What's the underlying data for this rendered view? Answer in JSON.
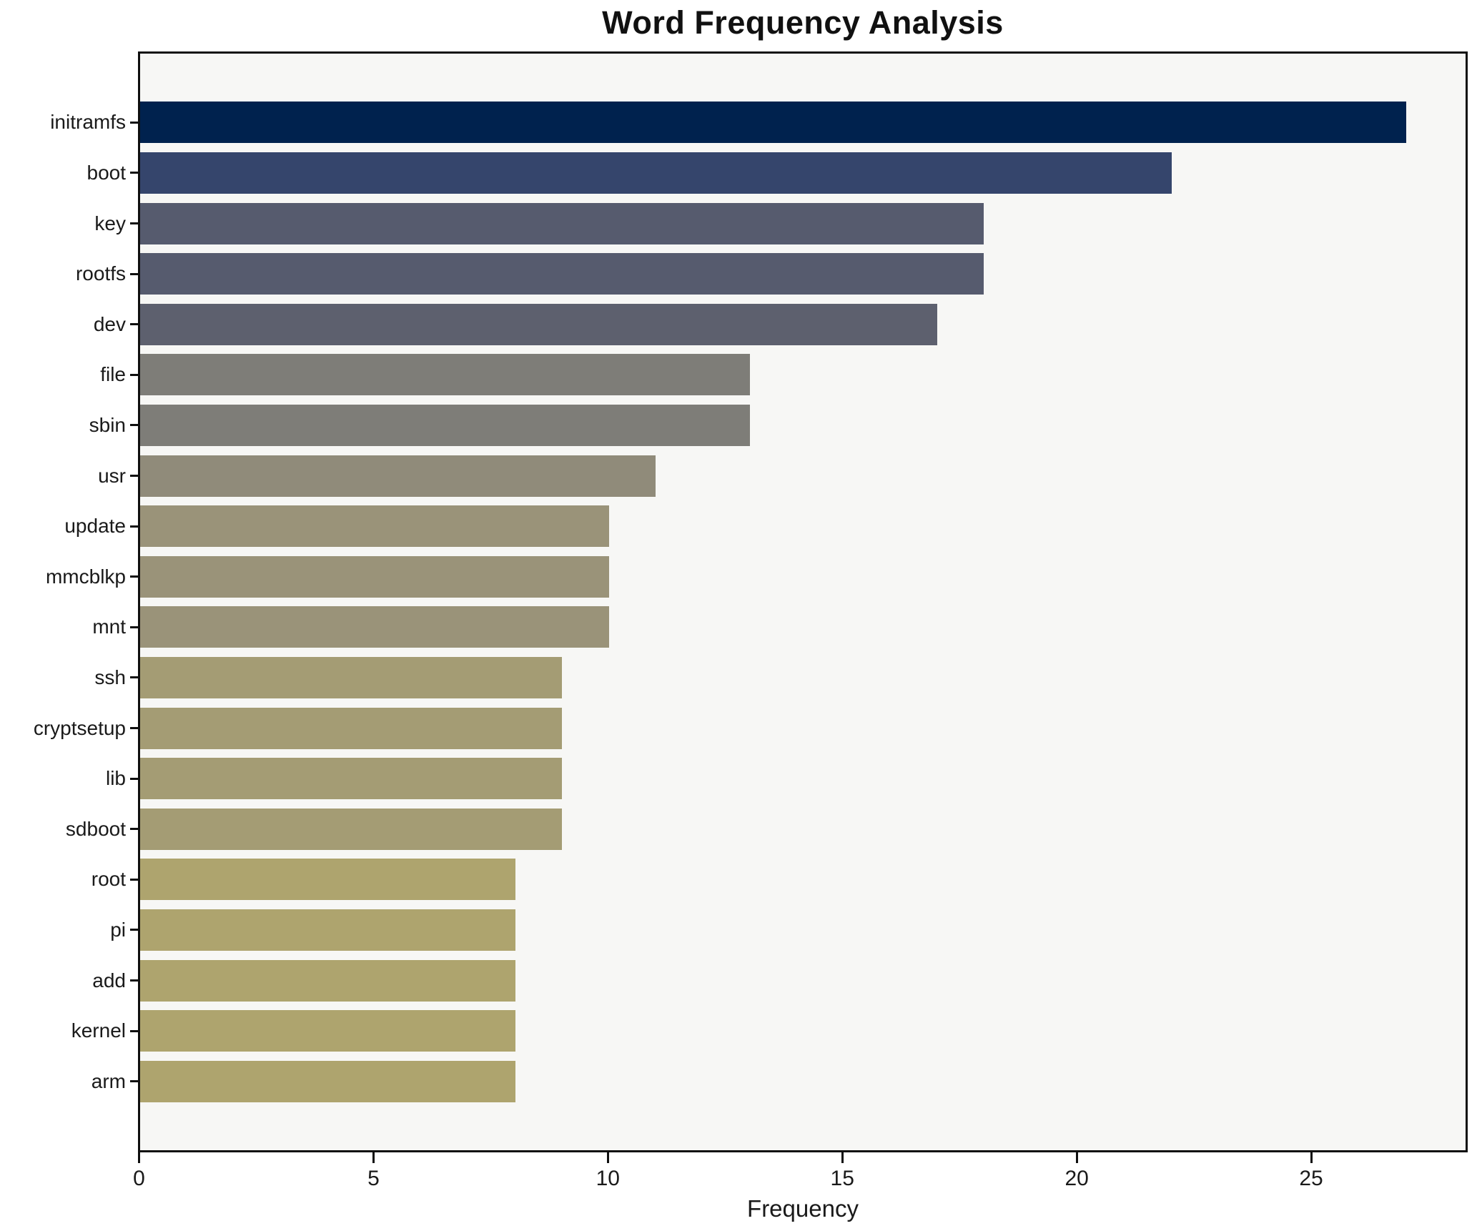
{
  "title": "Word Frequency Analysis",
  "chart_data": {
    "type": "bar",
    "orientation": "horizontal",
    "title": "Word Frequency Analysis",
    "xlabel": "Frequency",
    "ylabel": "",
    "categories": [
      "initramfs",
      "boot",
      "key",
      "rootfs",
      "dev",
      "file",
      "sbin",
      "usr",
      "update",
      "mmcblkp",
      "mnt",
      "ssh",
      "cryptsetup",
      "lib",
      "sdboot",
      "root",
      "pi",
      "add",
      "kernel",
      "arm"
    ],
    "values": [
      27,
      22,
      18,
      18,
      17,
      13,
      13,
      11,
      10,
      10,
      10,
      9,
      9,
      9,
      9,
      8,
      8,
      8,
      8,
      8
    ],
    "bar_colors": [
      "#00224e",
      "#35456c",
      "#565b6e",
      "#565b6e",
      "#5d606e",
      "#7e7d78",
      "#7e7d78",
      "#908b7a",
      "#9a9379",
      "#9a9379",
      "#9a9379",
      "#a49c74",
      "#a49c74",
      "#a49c74",
      "#a49c74",
      "#aea46e",
      "#aea46e",
      "#aea46e",
      "#aea46e",
      "#aea46e"
    ],
    "xlim": [
      0,
      28.27
    ],
    "xticks": [
      0,
      5,
      10,
      15,
      20,
      25
    ],
    "grid": false,
    "legend": false,
    "plot_background": "#f7f7f5",
    "figure_background": "#ffffff",
    "spine_color": "#0f0f0f"
  }
}
